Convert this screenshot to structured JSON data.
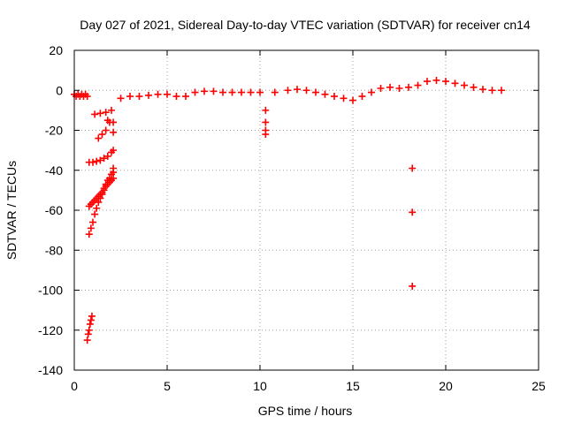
{
  "chart_data": {
    "type": "scatter",
    "title": "Day 027 of 2021, Sidereal Day-to-day VTEC variation (SDTVAR) for receiver cn14",
    "xlabel": "GPS time / hours",
    "ylabel": "SDTVAR / TECUs",
    "xlim": [
      0,
      25
    ],
    "ylim": [
      -140,
      20
    ],
    "xticks": [
      0,
      5,
      10,
      15,
      20,
      25
    ],
    "xtick_labels": [
      "0",
      "5",
      "10",
      "15",
      "20",
      "25"
    ],
    "yticks": [
      20,
      0,
      -20,
      -40,
      -60,
      -80,
      -100,
      -120,
      -140
    ],
    "ytick_labels": [
      "20",
      "0",
      "-20",
      "-40",
      "-60",
      "-80",
      "-100",
      "-120",
      "-140"
    ],
    "grid": true,
    "marker": "+",
    "colors": {
      "series": "#ff0000",
      "axis": "#000000",
      "grid": "#a0a0a0"
    },
    "series": [
      {
        "name": "SDTVAR",
        "points": [
          [
            0.0,
            -2
          ],
          [
            0.1,
            -3
          ],
          [
            0.2,
            -2
          ],
          [
            0.3,
            -3
          ],
          [
            0.4,
            -2
          ],
          [
            0.5,
            -3
          ],
          [
            0.6,
            -2
          ],
          [
            0.7,
            -3
          ],
          [
            0.8,
            -36
          ],
          [
            1.0,
            -36
          ],
          [
            1.2,
            -35.5
          ],
          [
            1.4,
            -35
          ],
          [
            1.6,
            -34
          ],
          [
            1.8,
            -33
          ],
          [
            2.0,
            -31
          ],
          [
            2.1,
            -30
          ],
          [
            1.1,
            -12
          ],
          [
            1.4,
            -11.5
          ],
          [
            1.7,
            -11
          ],
          [
            2.0,
            -10
          ],
          [
            1.3,
            -24
          ],
          [
            1.5,
            -22
          ],
          [
            1.7,
            -20
          ],
          [
            1.8,
            -15
          ],
          [
            1.9,
            -16
          ],
          [
            2.1,
            -16
          ],
          [
            2.1,
            -21
          ],
          [
            2.1,
            -39
          ],
          [
            0.8,
            -72
          ],
          [
            0.9,
            -69
          ],
          [
            1.0,
            -66
          ],
          [
            1.1,
            -62
          ],
          [
            1.2,
            -59
          ],
          [
            1.3,
            -56
          ],
          [
            1.4,
            -54
          ],
          [
            1.5,
            -52
          ],
          [
            1.6,
            -50
          ],
          [
            1.7,
            -48
          ],
          [
            1.8,
            -47
          ],
          [
            1.9,
            -46
          ],
          [
            2.0,
            -45
          ],
          [
            2.1,
            -44
          ],
          [
            0.8,
            -58
          ],
          [
            0.9,
            -57
          ],
          [
            1.0,
            -56
          ],
          [
            1.1,
            -55
          ],
          [
            1.2,
            -54
          ],
          [
            1.3,
            -53
          ],
          [
            1.4,
            -52
          ],
          [
            1.5,
            -51
          ],
          [
            1.6,
            -49
          ],
          [
            1.7,
            -47
          ],
          [
            1.8,
            -45
          ],
          [
            1.9,
            -44
          ],
          [
            2.0,
            -42
          ],
          [
            2.1,
            -41
          ],
          [
            0.7,
            -125
          ],
          [
            0.75,
            -122
          ],
          [
            0.8,
            -120
          ],
          [
            0.85,
            -117
          ],
          [
            0.9,
            -115
          ],
          [
            0.95,
            -113
          ],
          [
            2.5,
            -4
          ],
          [
            3.0,
            -3
          ],
          [
            3.5,
            -3
          ],
          [
            4.0,
            -2.5
          ],
          [
            4.5,
            -2
          ],
          [
            5.0,
            -2
          ],
          [
            5.5,
            -3
          ],
          [
            6.0,
            -3
          ],
          [
            6.5,
            -1
          ],
          [
            7.0,
            -0.5
          ],
          [
            7.5,
            -0.5
          ],
          [
            8.0,
            -1
          ],
          [
            8.5,
            -1
          ],
          [
            9.0,
            -1
          ],
          [
            9.5,
            -1
          ],
          [
            10.0,
            -1
          ],
          [
            10.3,
            -10
          ],
          [
            10.3,
            -16
          ],
          [
            10.3,
            -20
          ],
          [
            10.3,
            -22
          ],
          [
            10.8,
            -1
          ],
          [
            11.5,
            0
          ],
          [
            12.0,
            0.5
          ],
          [
            12.5,
            0
          ],
          [
            13.0,
            -1
          ],
          [
            13.5,
            -2
          ],
          [
            14.0,
            -3
          ],
          [
            14.5,
            -4
          ],
          [
            15.0,
            -5
          ],
          [
            15.5,
            -3
          ],
          [
            16.0,
            -1
          ],
          [
            16.5,
            1
          ],
          [
            17.0,
            1.5
          ],
          [
            17.5,
            1
          ],
          [
            18.0,
            1.5
          ],
          [
            18.5,
            2.5
          ],
          [
            18.2,
            -39
          ],
          [
            18.2,
            -61
          ],
          [
            18.2,
            -98
          ],
          [
            19.0,
            4.5
          ],
          [
            19.5,
            5
          ],
          [
            20.0,
            4.5
          ],
          [
            20.5,
            3.5
          ],
          [
            21.0,
            2.5
          ],
          [
            21.5,
            1.5
          ],
          [
            22.0,
            0.5
          ],
          [
            22.5,
            0
          ],
          [
            23.0,
            0
          ]
        ]
      }
    ]
  }
}
